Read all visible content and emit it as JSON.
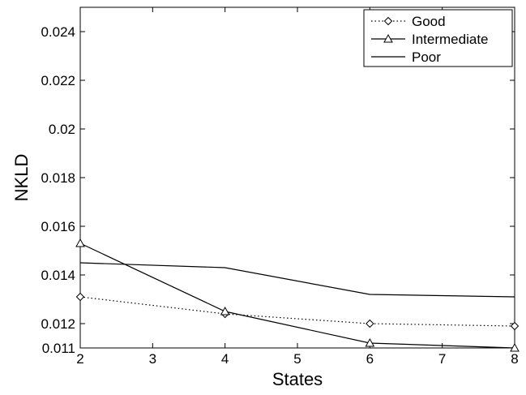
{
  "chart_data": {
    "type": "line",
    "title": "",
    "xlabel": "States",
    "ylabel": "NKLD",
    "xlim": [
      2,
      8
    ],
    "ylim": [
      0.011,
      0.025
    ],
    "xticks": [
      2,
      3,
      4,
      5,
      6,
      7,
      8
    ],
    "yticks": [
      0.011,
      0.012,
      0.014,
      0.016,
      0.018,
      0.02,
      0.022,
      0.024
    ],
    "ytick_labels": [
      "0.011",
      "0.012",
      "0.014",
      "0.016",
      "0.018",
      "0.02",
      "0.022",
      "0.024"
    ],
    "grid": false,
    "legend_position": "top-right",
    "x": [
      2,
      4,
      6,
      8
    ],
    "series": [
      {
        "name": "Good",
        "values": [
          0.0131,
          0.0124,
          0.012,
          0.0119
        ],
        "line_style": "dotted",
        "marker": "diamond",
        "color": "#000000"
      },
      {
        "name": "Intermediate",
        "values": [
          0.0153,
          0.0125,
          0.0112,
          0.011
        ],
        "line_style": "solid",
        "marker": "triangle",
        "color": "#000000"
      },
      {
        "name": "Poor",
        "values": [
          0.0145,
          0.0143,
          0.0132,
          0.0131
        ],
        "line_style": "solid",
        "marker": "none",
        "color": "#000000"
      }
    ]
  }
}
